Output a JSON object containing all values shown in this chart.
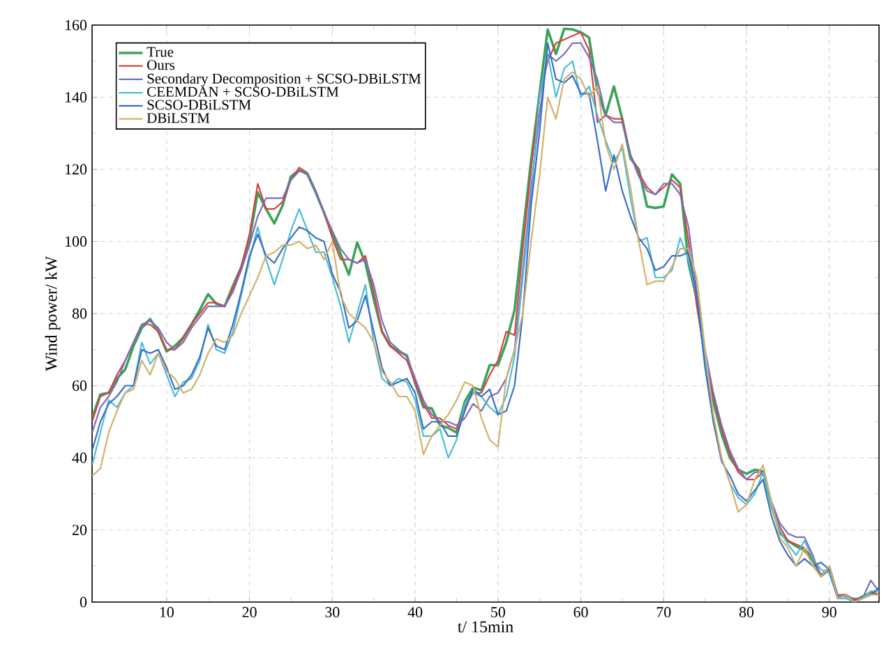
{
  "chart_data": {
    "type": "line",
    "xlabel": "t/ 15min",
    "ylabel": "Wind power/ kW",
    "x": [
      1,
      2,
      3,
      4,
      5,
      6,
      7,
      8,
      9,
      10,
      11,
      12,
      13,
      14,
      15,
      16,
      17,
      18,
      19,
      20,
      21,
      22,
      23,
      24,
      25,
      26,
      27,
      28,
      29,
      30,
      31,
      32,
      33,
      34,
      35,
      36,
      37,
      38,
      39,
      40,
      41,
      42,
      43,
      44,
      45,
      46,
      47,
      48,
      49,
      50,
      51,
      52,
      53,
      54,
      55,
      56,
      57,
      58,
      59,
      60,
      61,
      62,
      63,
      64,
      65,
      66,
      67,
      68,
      69,
      70,
      71,
      72,
      73,
      74,
      75,
      76,
      77,
      78,
      79,
      80,
      81,
      82,
      83,
      84,
      85,
      86,
      87,
      88,
      89,
      90,
      91,
      92,
      93,
      94,
      95,
      96
    ],
    "xlim": [
      1,
      96
    ],
    "ylim": [
      0,
      160
    ],
    "xticks": [
      10,
      20,
      30,
      40,
      50,
      60,
      70,
      80,
      90
    ],
    "yticks": [
      0,
      20,
      40,
      60,
      80,
      100,
      120,
      140,
      160
    ],
    "grid": true,
    "legend": "top left",
    "line_style": "solid",
    "marker": "none",
    "series": [
      {
        "name": "True",
        "color": "#3aa35a",
        "values": [
          51,
          57.6,
          58,
          62,
          64.5,
          71,
          76,
          78.5,
          75,
          69.5,
          71,
          73.4,
          77,
          81,
          85.4,
          82.7,
          82,
          87.7,
          92.8,
          100.5,
          113.6,
          109,
          105,
          110,
          118,
          119.8,
          118.6,
          113.6,
          108,
          102,
          96.6,
          90.8,
          99.7,
          94,
          84,
          75,
          71,
          69.6,
          68.4,
          60.7,
          54,
          53.7,
          49,
          48.3,
          47,
          55.6,
          59.5,
          58.7,
          65.7,
          65.7,
          72,
          81,
          102,
          122.5,
          140.7,
          158.8,
          152,
          159,
          158.8,
          158,
          156.5,
          141.8,
          135,
          143,
          134,
          123,
          120,
          109.7,
          109.3,
          109.7,
          118.6,
          116,
          94,
          84,
          68,
          55.6,
          46.5,
          40,
          36.7,
          35.6,
          36.7,
          36.3,
          27,
          19.3,
          17,
          15.5,
          14.3,
          11.6,
          7.3,
          9.7,
          1.5,
          2,
          0.4,
          1.5,
          2.7,
          2
        ]
      },
      {
        "name": "Ours",
        "color": "#d94040",
        "values": [
          50,
          57,
          58,
          63,
          67,
          72,
          77,
          77,
          75,
          70,
          70,
          73,
          77,
          80,
          83,
          83,
          82,
          87,
          93,
          102,
          116,
          109,
          109,
          111,
          117,
          120.5,
          119,
          114,
          108,
          101,
          95,
          95,
          94,
          96,
          86,
          75,
          71,
          69,
          67,
          61,
          55,
          51,
          51,
          49,
          48,
          54,
          58,
          58,
          63,
          67,
          75,
          74,
          98,
          120,
          140,
          150,
          155,
          156,
          157,
          158,
          153,
          133,
          135,
          134,
          134,
          124,
          119,
          115,
          113,
          115,
          117,
          115,
          100,
          82,
          68,
          57,
          48,
          41,
          36,
          34,
          34,
          36,
          28,
          21,
          17,
          16,
          15,
          12,
          7,
          9,
          2,
          2,
          0.5,
          1,
          3,
          2
        ]
      },
      {
        "name": "Secondary Decomposition + SCSO-DBiLSTM",
        "color": "#7b6cc0",
        "values": [
          47,
          54,
          57,
          61,
          67,
          72,
          77,
          78,
          76,
          72,
          70,
          72,
          76,
          79,
          82,
          82,
          82,
          86,
          92,
          99,
          107,
          112,
          112,
          112,
          117,
          119.5,
          119,
          114,
          108,
          103,
          98,
          95,
          94,
          95,
          88,
          78,
          72,
          70,
          68,
          62,
          56,
          52,
          50,
          50,
          49,
          51,
          55,
          53,
          57,
          58,
          62,
          70,
          92,
          115,
          135,
          152,
          150,
          152,
          155,
          155,
          151,
          145,
          135,
          133,
          133,
          124,
          118,
          114,
          113,
          116,
          116,
          113,
          104,
          86,
          70,
          58,
          49,
          42,
          37,
          34,
          36,
          36,
          28,
          22,
          19,
          18,
          18,
          13,
          7,
          9,
          2,
          1.5,
          1,
          1,
          6,
          3
        ]
      },
      {
        "name": "CEEMDAN + SCSO-DBiLSTM",
        "color": "#4bbcd8",
        "values": [
          38,
          47,
          56,
          54,
          58,
          60,
          72,
          66,
          69,
          63,
          57,
          61,
          62,
          67,
          77,
          70,
          69,
          75,
          85,
          95,
          104,
          95,
          88,
          95,
          103,
          109,
          103,
          97,
          97,
          90,
          82,
          72,
          80,
          88,
          72,
          62,
          60,
          62,
          61,
          56,
          46,
          46,
          48,
          40,
          45,
          55,
          58,
          57,
          54,
          52,
          57,
          68,
          90,
          112,
          140,
          152,
          140,
          148,
          150,
          140,
          143,
          135,
          128,
          122,
          126,
          112,
          100,
          101,
          90,
          90,
          92,
          101,
          95,
          85,
          68,
          50,
          40,
          33,
          29,
          27,
          30,
          36,
          27,
          20,
          16,
          13,
          17,
          12,
          9,
          8,
          1,
          1,
          0,
          1,
          3,
          3
        ]
      },
      {
        "name": "SCSO-DBiLSTM",
        "color": "#3a6fc0",
        "values": [
          42,
          50,
          55,
          57,
          60,
          60,
          70,
          69,
          70,
          65,
          59,
          60,
          63,
          68,
          76,
          71,
          70,
          77,
          86,
          96,
          102,
          96,
          94,
          98,
          101,
          104,
          103,
          101,
          100,
          91,
          86,
          76,
          78,
          85,
          75,
          65,
          60,
          61,
          62,
          58,
          48,
          50,
          50,
          46,
          46,
          53,
          59,
          57,
          59,
          52,
          53,
          60,
          80,
          110,
          130,
          155,
          145,
          144,
          146,
          141,
          141,
          128,
          114,
          124,
          114,
          107,
          101,
          98,
          92,
          93,
          96,
          96,
          97,
          85,
          65,
          50,
          39,
          35,
          30,
          28,
          31,
          34,
          24,
          17,
          13,
          10,
          12,
          10,
          11,
          9,
          1,
          2,
          0,
          1,
          2,
          4
        ]
      },
      {
        "name": "DBiLSTM",
        "color": "#d4b06a",
        "values": [
          35,
          37,
          47,
          53,
          58,
          59,
          67,
          63,
          69,
          64,
          62,
          58,
          59,
          63,
          69,
          73,
          72,
          74,
          80,
          85,
          90,
          96,
          97,
          99,
          99,
          100,
          98,
          99,
          95,
          100,
          85,
          80,
          78,
          76,
          72,
          64,
          61,
          57,
          57,
          53,
          41,
          46,
          49,
          52,
          56,
          61,
          60,
          51,
          45,
          43,
          62,
          70,
          80,
          100,
          118,
          140,
          134,
          145,
          147,
          145,
          140,
          143,
          127,
          120,
          127,
          115,
          100,
          88,
          89,
          89,
          93,
          98,
          98,
          90,
          70,
          52,
          40,
          33,
          25,
          27,
          34,
          38,
          28,
          18,
          15,
          10,
          15,
          10,
          7,
          10,
          1,
          2,
          0,
          1,
          2,
          2
        ]
      }
    ]
  }
}
